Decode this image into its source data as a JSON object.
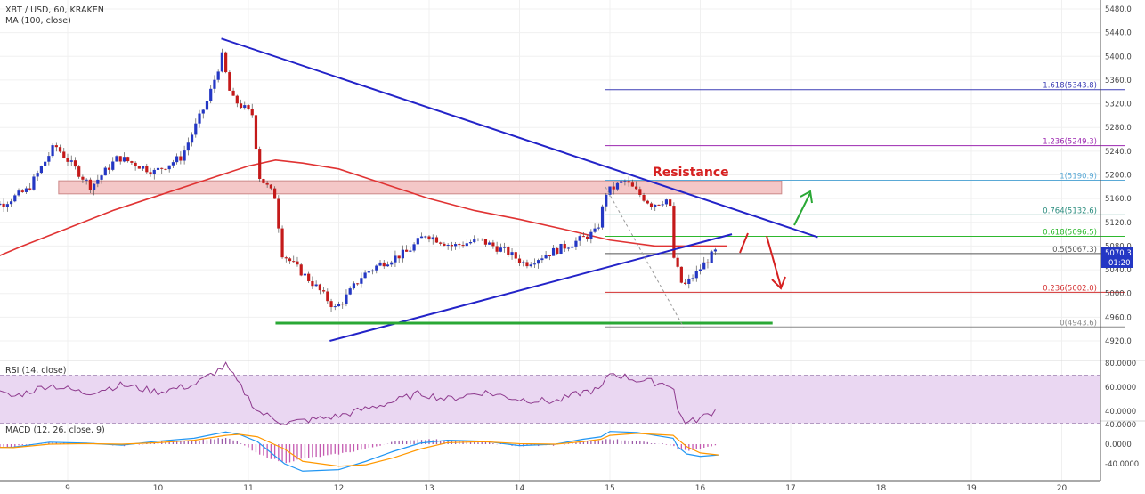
{
  "header": {
    "symbol_line": "XBT / USD, 60, KRAKEN",
    "ma_line": "MA (100, close)",
    "rsi_line": "RSI (14, close)",
    "macd_line": "MACD (12, 26, close, 9)"
  },
  "price_axis": {
    "ticks": [
      "5480.0",
      "5440.0",
      "5400.0",
      "5360.0",
      "5320.0",
      "5280.0",
      "5240.0",
      "5200.0",
      "5160.0",
      "5120.0",
      "5080.0",
      "5040.0",
      "5000.0",
      "4960.0",
      "4920.0"
    ],
    "current_price": "5070.3",
    "countdown": "01:20"
  },
  "rsi_axis": {
    "ticks": [
      "80.0000",
      "60.0000",
      "40.0000"
    ]
  },
  "macd_axis": {
    "ticks": [
      "40.0000",
      "0.0000",
      "-40.0000"
    ]
  },
  "time_axis": {
    "ticks": [
      "9",
      "10",
      "11",
      "12",
      "13",
      "14",
      "15",
      "16",
      "17",
      "18",
      "19",
      "20"
    ]
  },
  "annotations": {
    "resistance_label": "Resistance"
  },
  "fib_levels": [
    {
      "label": "1.618(5343.8)",
      "color": "#3d3fb5"
    },
    {
      "label": "1.236(5249.3)",
      "color": "#9c27b0"
    },
    {
      "label": "1(5190.9)",
      "color": "#5aa9d6"
    },
    {
      "label": "0.764(5132.6)",
      "color": "#2a8c7e"
    },
    {
      "label": "0.618(5096.5)",
      "color": "#2eb82e"
    },
    {
      "label": "0.5(5067.3)",
      "color": "#555555"
    },
    {
      "label": "0.236(5002.0)",
      "color": "#d32f2f"
    },
    {
      "label": "0(4943.6)",
      "color": "#888888"
    }
  ],
  "colors": {
    "up": "#2437c4",
    "down": "#c41a1a",
    "ma": "#e03333",
    "trendline": "#2323c8",
    "support": "#2aa835",
    "resistance_zone": "#f4c7c7",
    "rsi_band": "#ead7f2",
    "macd_line": "#2196f3",
    "signal_line": "#ff9800"
  },
  "chart_data": {
    "type": "candlestick",
    "title": "XBT / USD, 60, KRAKEN",
    "ylim": [
      4905,
      5490
    ],
    "x_range": [
      "8",
      "20.7"
    ],
    "price_path": [
      [
        8.0,
        5170
      ],
      [
        8.3,
        5150
      ],
      [
        8.6,
        5175
      ],
      [
        8.9,
        5250
      ],
      [
        9.3,
        5180
      ],
      [
        9.6,
        5230
      ],
      [
        10.0,
        5205
      ],
      [
        10.3,
        5230
      ],
      [
        10.6,
        5330
      ],
      [
        10.75,
        5400
      ],
      [
        10.85,
        5330
      ],
      [
        11.1,
        5300
      ],
      [
        11.15,
        5200
      ],
      [
        11.35,
        5160
      ],
      [
        11.4,
        5070
      ],
      [
        11.6,
        5040
      ],
      [
        11.8,
        5010
      ],
      [
        12.0,
        4975
      ],
      [
        12.1,
        4990
      ],
      [
        12.3,
        5030
      ],
      [
        12.5,
        5050
      ],
      [
        12.8,
        5070
      ],
      [
        13.0,
        5100
      ],
      [
        13.3,
        5080
      ],
      [
        13.6,
        5090
      ],
      [
        13.9,
        5070
      ],
      [
        14.1,
        5050
      ],
      [
        14.4,
        5070
      ],
      [
        14.7,
        5090
      ],
      [
        14.9,
        5105
      ],
      [
        15.0,
        5170
      ],
      [
        15.2,
        5190
      ],
      [
        15.5,
        5150
      ],
      [
        15.7,
        5160
      ],
      [
        15.75,
        5060
      ],
      [
        15.85,
        5010
      ],
      [
        16.0,
        5035
      ],
      [
        16.2,
        5070
      ]
    ],
    "ma100": [
      [
        8.0,
        5048
      ],
      [
        8.5,
        5080
      ],
      [
        9.0,
        5110
      ],
      [
        9.5,
        5140
      ],
      [
        10.0,
        5165
      ],
      [
        10.5,
        5190
      ],
      [
        11.0,
        5215
      ],
      [
        11.3,
        5225
      ],
      [
        11.6,
        5220
      ],
      [
        12.0,
        5210
      ],
      [
        12.5,
        5185
      ],
      [
        13.0,
        5160
      ],
      [
        13.5,
        5140
      ],
      [
        14.0,
        5125
      ],
      [
        14.5,
        5108
      ],
      [
        15.0,
        5090
      ],
      [
        15.5,
        5080
      ],
      [
        16.0,
        5080
      ],
      [
        16.3,
        5080
      ]
    ],
    "trendlines": [
      {
        "name": "descending",
        "from": [
          10.7,
          5430
        ],
        "to": [
          17.3,
          5095
        ]
      },
      {
        "name": "ascending",
        "from": [
          11.9,
          4920
        ],
        "to": [
          16.35,
          5100
        ]
      }
    ],
    "support": {
      "y": 4950,
      "x": [
        11.3,
        16.8
      ]
    },
    "resistance_zone": {
      "y": [
        5168,
        5190
      ],
      "x": [
        8.9,
        16.9
      ]
    },
    "fib_values": [
      5343.8,
      5249.3,
      5190.9,
      5132.6,
      5096.5,
      5067.3,
      5002.0,
      4943.6
    ],
    "fib_x": [
      14.95,
      20.7
    ],
    "rsi": {
      "ylim": [
        20,
        86
      ],
      "band": [
        30,
        70
      ],
      "values": [
        [
          8.0,
          60
        ],
        [
          8.4,
          52
        ],
        [
          8.8,
          62
        ],
        [
          9.2,
          55
        ],
        [
          9.6,
          62
        ],
        [
          10.0,
          56
        ],
        [
          10.4,
          62
        ],
        [
          10.75,
          78
        ],
        [
          10.9,
          62
        ],
        [
          11.1,
          40
        ],
        [
          11.4,
          30
        ],
        [
          11.6,
          32
        ],
        [
          12.0,
          36
        ],
        [
          12.3,
          42
        ],
        [
          12.6,
          48
        ],
        [
          12.9,
          55
        ],
        [
          13.2,
          50
        ],
        [
          13.6,
          56
        ],
        [
          14.0,
          50
        ],
        [
          14.4,
          48
        ],
        [
          14.7,
          56
        ],
        [
          14.9,
          58
        ],
        [
          15.0,
          72
        ],
        [
          15.3,
          66
        ],
        [
          15.7,
          62
        ],
        [
          15.75,
          40
        ],
        [
          15.85,
          30
        ],
        [
          16.0,
          34
        ],
        [
          16.2,
          42
        ]
      ]
    },
    "macd": {
      "ylim": [
        -60,
        60
      ],
      "hist": [
        [
          8.0,
          -10
        ],
        [
          8.4,
          -5
        ],
        [
          8.8,
          3
        ],
        [
          9.2,
          2
        ],
        [
          9.6,
          -3
        ],
        [
          10.0,
          4
        ],
        [
          10.4,
          8
        ],
        [
          10.75,
          12
        ],
        [
          10.9,
          4
        ],
        [
          11.1,
          -20
        ],
        [
          11.4,
          -38
        ],
        [
          11.6,
          -30
        ],
        [
          12.0,
          -20
        ],
        [
          12.3,
          -10
        ],
        [
          12.6,
          5
        ],
        [
          12.9,
          10
        ],
        [
          13.2,
          8
        ],
        [
          13.6,
          4
        ],
        [
          14.0,
          -4
        ],
        [
          14.4,
          -2
        ],
        [
          14.7,
          5
        ],
        [
          14.9,
          8
        ],
        [
          15.0,
          10
        ],
        [
          15.3,
          6
        ],
        [
          15.7,
          -2
        ],
        [
          15.75,
          -10
        ],
        [
          15.85,
          -14
        ],
        [
          16.0,
          -8
        ],
        [
          16.2,
          0
        ]
      ],
      "macd_values": [
        [
          8.0,
          -8
        ],
        [
          8.4,
          -6
        ],
        [
          8.8,
          4
        ],
        [
          9.2,
          2
        ],
        [
          9.6,
          -2
        ],
        [
          10.0,
          6
        ],
        [
          10.4,
          12
        ],
        [
          10.75,
          25
        ],
        [
          10.9,
          20
        ],
        [
          11.1,
          5
        ],
        [
          11.4,
          -40
        ],
        [
          11.6,
          -55
        ],
        [
          12.0,
          -52
        ],
        [
          12.3,
          -35
        ],
        [
          12.6,
          -15
        ],
        [
          12.9,
          2
        ],
        [
          13.2,
          8
        ],
        [
          13.6,
          6
        ],
        [
          14.0,
          -3
        ],
        [
          14.4,
          0
        ],
        [
          14.7,
          10
        ],
        [
          14.9,
          15
        ],
        [
          15.0,
          26
        ],
        [
          15.3,
          24
        ],
        [
          15.7,
          12
        ],
        [
          15.75,
          -5
        ],
        [
          15.85,
          -20
        ],
        [
          16.0,
          -25
        ],
        [
          16.2,
          -22
        ]
      ],
      "signal_values": [
        [
          8.0,
          -6
        ],
        [
          8.4,
          -7
        ],
        [
          8.8,
          0
        ],
        [
          9.2,
          1
        ],
        [
          9.6,
          0
        ],
        [
          10.0,
          3
        ],
        [
          10.4,
          8
        ],
        [
          10.75,
          18
        ],
        [
          10.9,
          20
        ],
        [
          11.1,
          15
        ],
        [
          11.4,
          -10
        ],
        [
          11.6,
          -35
        ],
        [
          12.0,
          -45
        ],
        [
          12.3,
          -42
        ],
        [
          12.6,
          -28
        ],
        [
          12.9,
          -10
        ],
        [
          13.2,
          3
        ],
        [
          13.6,
          5
        ],
        [
          14.0,
          1
        ],
        [
          14.4,
          0
        ],
        [
          14.7,
          5
        ],
        [
          14.9,
          10
        ],
        [
          15.0,
          18
        ],
        [
          15.3,
          22
        ],
        [
          15.7,
          18
        ],
        [
          15.75,
          10
        ],
        [
          15.85,
          -5
        ],
        [
          16.0,
          -18
        ],
        [
          16.2,
          -22
        ]
      ]
    }
  }
}
